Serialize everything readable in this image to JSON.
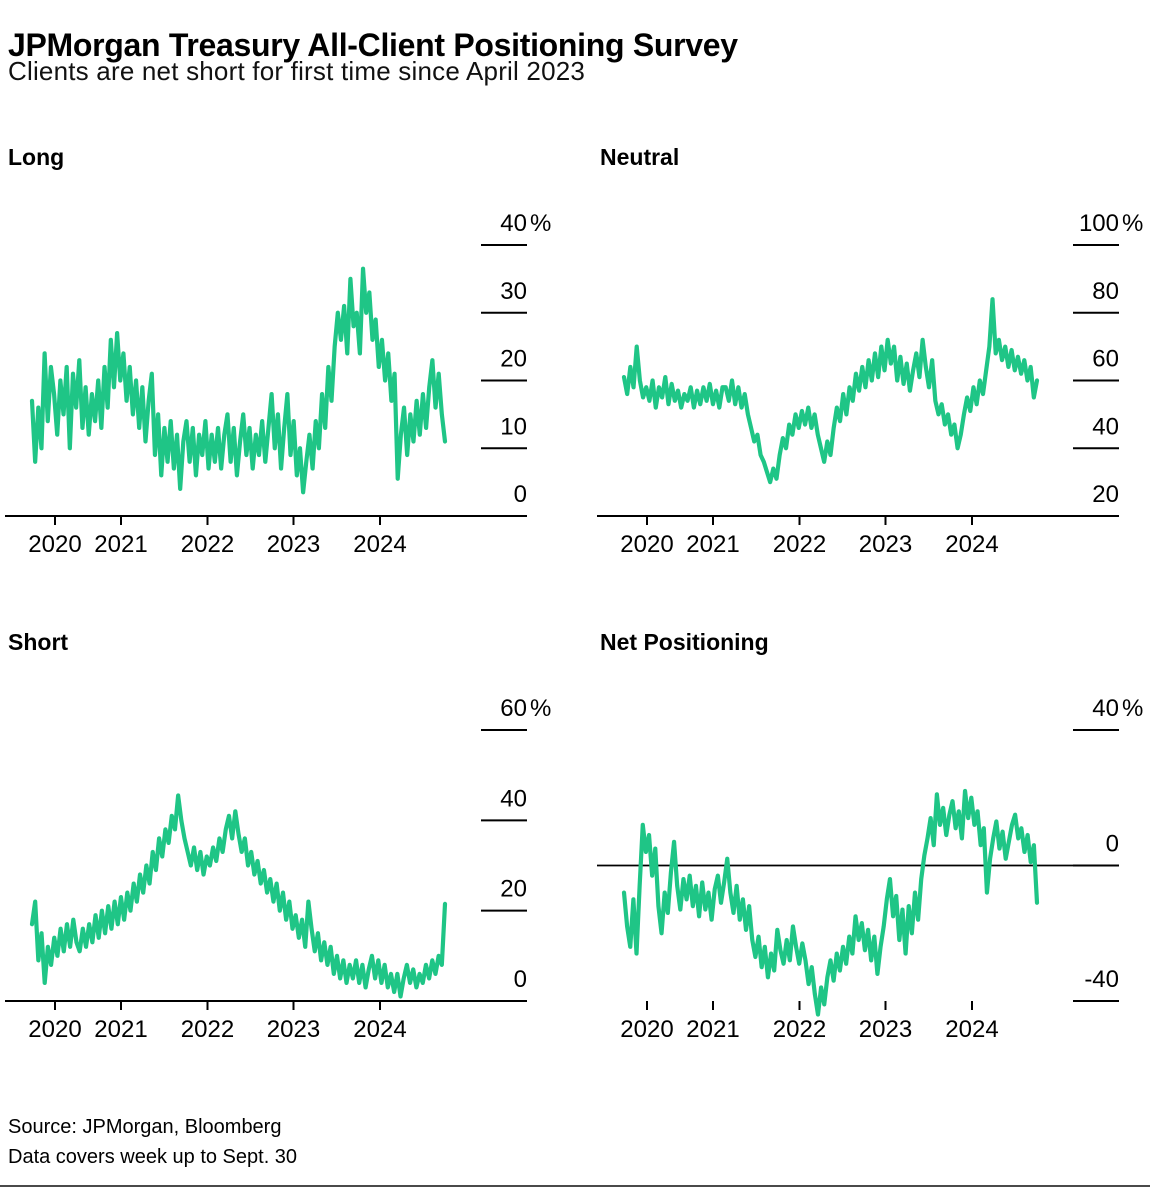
{
  "header": {
    "title": "JPMorgan Treasury All-Client Positioning Survey",
    "subtitle": "Clients are net short for first time since April 2023"
  },
  "footer": {
    "source": "Source: JPMorgan, Bloomberg",
    "note": "Data covers week up to Sept. 30"
  },
  "colors": {
    "line": "#1fc586",
    "axis": "#000000",
    "zero_line": "#000000",
    "text": "#000000"
  },
  "chart_data": [
    {
      "type": "line",
      "title": "Long",
      "ylim": [
        0,
        40
      ],
      "yticks": [
        40,
        30,
        20,
        10,
        0
      ],
      "ytick_suffix": "%",
      "x_ticks": [
        "2020",
        "2021",
        "2022",
        "2023",
        "2024"
      ],
      "x_range": [
        "Oct 2019",
        "Sep 30 2024"
      ],
      "has_baseline": true,
      "zero_line": false,
      "values": [
        17,
        8,
        16,
        10,
        24,
        14,
        22,
        18,
        12,
        20,
        15,
        22,
        10,
        21,
        16,
        23,
        13,
        19,
        12,
        18,
        14,
        20,
        13,
        22,
        16,
        26,
        19,
        27,
        20,
        24,
        17,
        22,
        15,
        20,
        13,
        19,
        11,
        17,
        21,
        9,
        15,
        6,
        13,
        8,
        14,
        7,
        12,
        4,
        11,
        14,
        8,
        13,
        6,
        12,
        9,
        14,
        7,
        12,
        8,
        13,
        7,
        12,
        15,
        8,
        13,
        6,
        11,
        15,
        9,
        13,
        7,
        12,
        9,
        14,
        8,
        13,
        18,
        10,
        15,
        7,
        13,
        18,
        9,
        14,
        6,
        10,
        3.5,
        8,
        12,
        7,
        14,
        10,
        18,
        13,
        22,
        17,
        25,
        30,
        26,
        31,
        24,
        35,
        28,
        30,
        24,
        36.5,
        30,
        33,
        26,
        29,
        22,
        26,
        20,
        24,
        17,
        21,
        5.5,
        12,
        16,
        9,
        15,
        11,
        17,
        12,
        18,
        13,
        19,
        23,
        16,
        21,
        15,
        11
      ]
    },
    {
      "type": "line",
      "title": "Neutral",
      "ylim": [
        20,
        100
      ],
      "yticks": [
        100,
        80,
        60,
        40,
        20
      ],
      "ytick_suffix": "%",
      "x_ticks": [
        "2020",
        "2021",
        "2022",
        "2023",
        "2024"
      ],
      "x_range": [
        "Oct 2019",
        "Sep 30 2024"
      ],
      "has_baseline": true,
      "zero_line": false,
      "values": [
        61,
        56,
        64,
        58,
        70,
        60,
        55,
        58,
        54,
        60,
        52,
        58,
        55,
        61,
        53,
        59,
        54,
        57,
        52,
        56,
        54,
        58,
        52,
        57,
        53,
        58,
        54,
        59,
        53,
        57,
        52,
        58,
        58,
        54,
        60,
        53,
        58,
        52,
        56,
        50,
        46,
        42,
        44,
        38,
        36,
        33,
        30,
        34,
        31,
        38,
        43,
        40,
        47,
        44,
        50,
        46,
        51,
        47,
        52,
        46,
        50,
        44,
        40,
        36,
        42,
        38,
        46,
        52,
        48,
        56,
        50,
        58,
        54,
        62,
        57,
        64,
        58,
        66,
        60,
        68,
        61,
        70,
        63,
        72,
        65,
        70,
        60,
        67,
        59,
        65,
        57,
        63,
        68,
        61,
        72,
        64,
        58,
        66,
        54,
        50,
        53,
        47,
        50,
        44,
        47,
        40,
        44,
        50,
        55,
        51,
        58,
        53,
        60,
        56,
        63,
        70,
        84,
        68,
        72,
        66,
        70,
        64,
        69,
        63,
        67,
        62,
        66,
        60,
        64,
        55,
        60
      ]
    },
    {
      "type": "line",
      "title": "Short",
      "ylim": [
        0,
        60
      ],
      "yticks": [
        60,
        40,
        20,
        0
      ],
      "ytick_suffix": "%",
      "x_ticks": [
        "2020",
        "2021",
        "2022",
        "2023",
        "2024"
      ],
      "x_range": [
        "Oct 2019",
        "Sep 30 2024"
      ],
      "has_baseline": true,
      "zero_line": false,
      "values": [
        17,
        22,
        9,
        15,
        4,
        12,
        8,
        14,
        10,
        16,
        11,
        17,
        12,
        18,
        13,
        11,
        16,
        12,
        17,
        13,
        19,
        14,
        20,
        15,
        21,
        16,
        22,
        17,
        23,
        18,
        24,
        20,
        26,
        22,
        28,
        24,
        30,
        26,
        33,
        29,
        36,
        32,
        38,
        35,
        41,
        38,
        45.5,
        40,
        36,
        33,
        30,
        34,
        29,
        33,
        28,
        32,
        30,
        34,
        31,
        36,
        33,
        38,
        41,
        36,
        42,
        37,
        33,
        36,
        30,
        33,
        28,
        31,
        26,
        29,
        24,
        27,
        22,
        26,
        20,
        24,
        18,
        22,
        16,
        19,
        14,
        18,
        12,
        22,
        16,
        11,
        15,
        9,
        13,
        8,
        12,
        6,
        10,
        5,
        9,
        4,
        8,
        5,
        9,
        4,
        8,
        3,
        7,
        10,
        5,
        9,
        4,
        8,
        3,
        6,
        2,
        6,
        1,
        5,
        8,
        4,
        7,
        3,
        6,
        4,
        8,
        5,
        9,
        6,
        10,
        8,
        21.5
      ]
    },
    {
      "type": "line",
      "title": "Net Positioning",
      "ylim": [
        -40,
        40
      ],
      "yticks": [
        40,
        0,
        -40
      ],
      "ytick_suffix": "%",
      "x_ticks": [
        "2020",
        "2021",
        "2022",
        "2023",
        "2024"
      ],
      "x_range": [
        "Oct 2019",
        "Sep 30 2024"
      ],
      "has_baseline": false,
      "zero_line": true,
      "values": [
        -8,
        -18,
        -24,
        -10,
        -26,
        -6,
        12,
        4,
        9,
        -3,
        5,
        -12,
        -20,
        -8,
        -14,
        -2,
        7,
        -6,
        -13,
        -4,
        -10,
        -3,
        -12,
        -6,
        -15,
        -5,
        -13,
        -8,
        -16,
        -7,
        -3,
        -11,
        -5,
        2,
        -8,
        -14,
        -6,
        -16,
        -10,
        -19,
        -12,
        -22,
        -27,
        -21,
        -30,
        -24,
        -33,
        -26,
        -31,
        -19,
        -25,
        -29,
        -22,
        -28,
        -18,
        -24,
        -29,
        -23,
        -28,
        -35,
        -30,
        -38,
        -44,
        -36,
        -41,
        -33,
        -28,
        -34,
        -26,
        -31,
        -24,
        -29,
        -21,
        -26,
        -15,
        -22,
        -17,
        -25,
        -19,
        -28,
        -21,
        -32,
        -24,
        -18,
        -10,
        -4,
        -15,
        -9,
        -22,
        -13,
        -26,
        -12,
        -20,
        -8,
        -16,
        -4,
        3,
        8,
        14,
        6,
        21,
        12,
        17,
        9,
        15,
        19,
        11,
        16,
        8,
        22,
        14,
        20,
        12,
        16,
        6,
        11,
        -8,
        2,
        8,
        13,
        5,
        10,
        2,
        7,
        12,
        15,
        8,
        11,
        4,
        9,
        1,
        6,
        -11
      ]
    }
  ]
}
